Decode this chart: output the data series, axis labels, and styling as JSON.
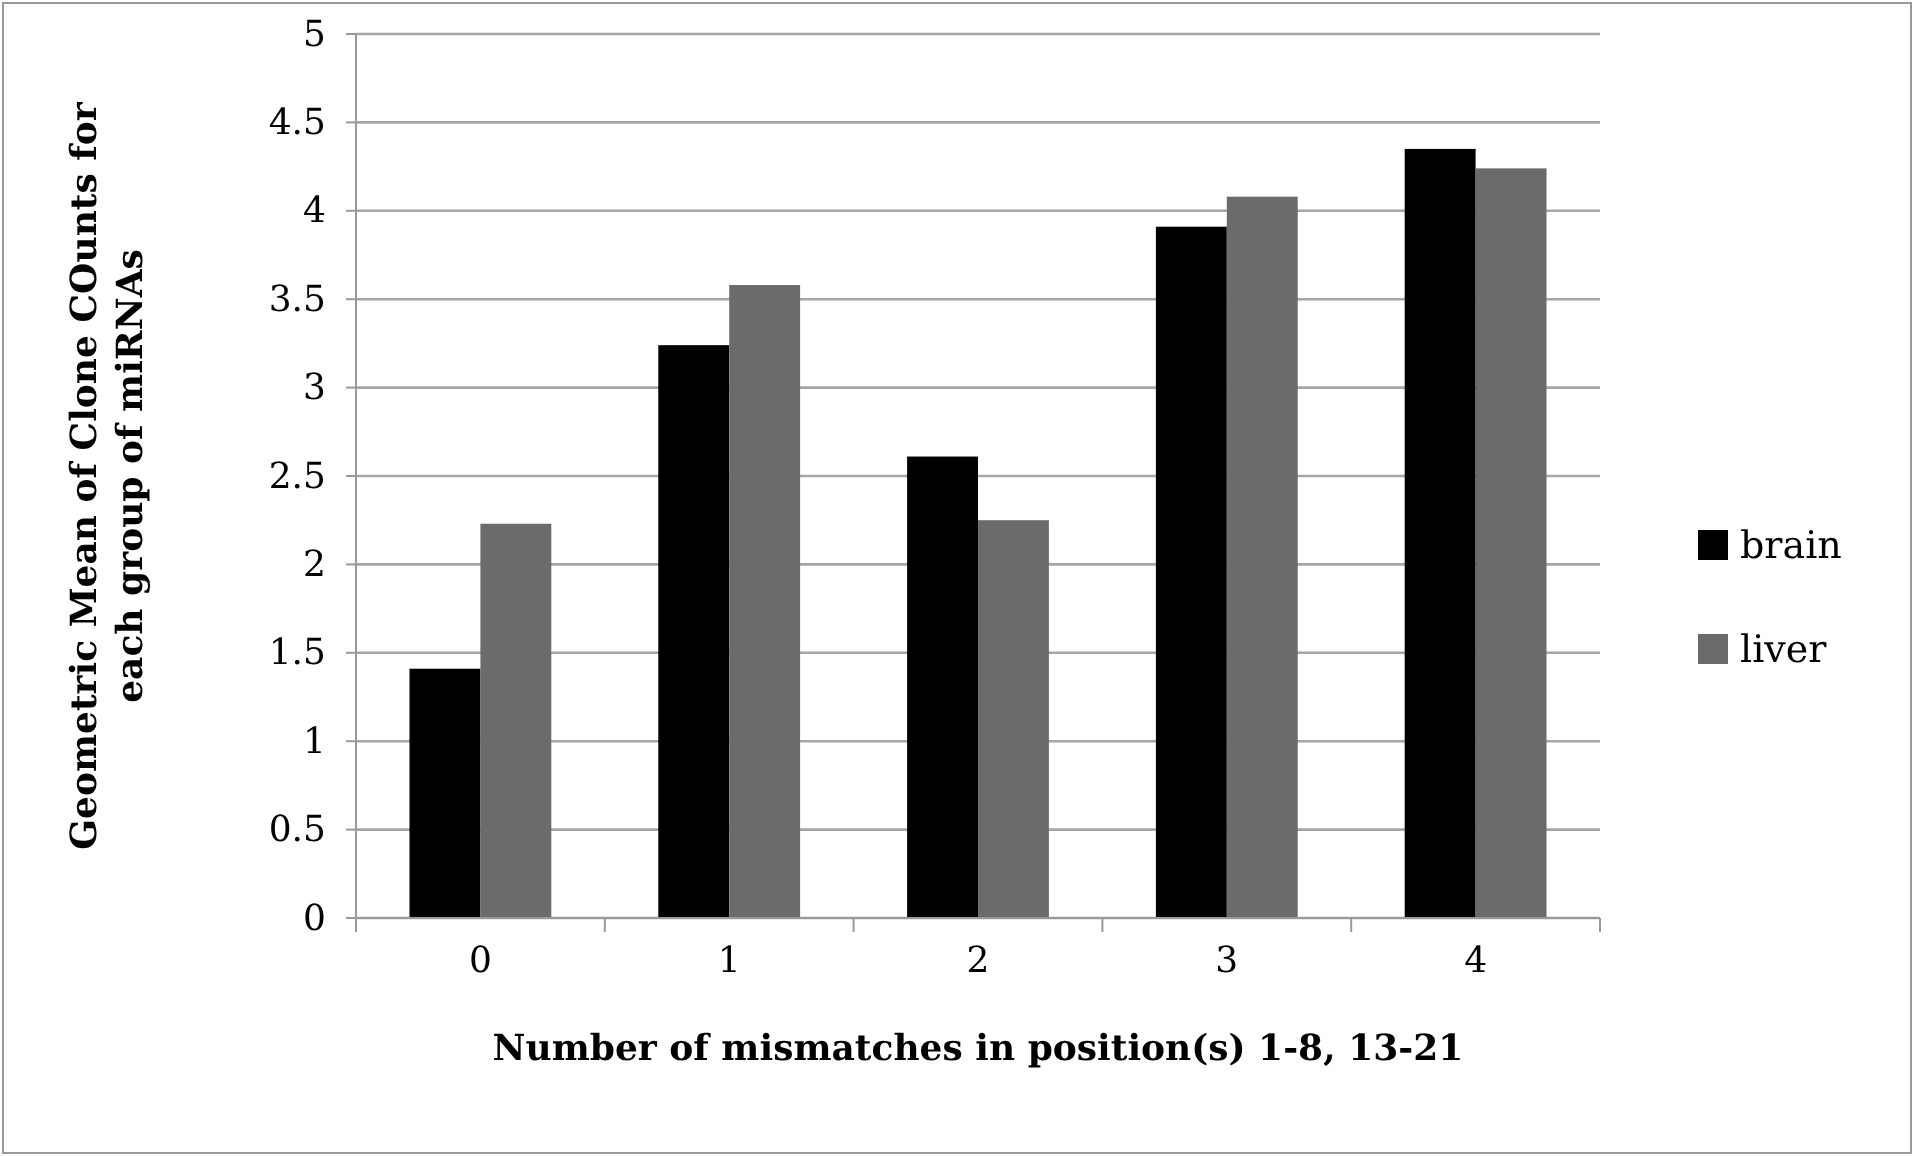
{
  "chart_data": {
    "type": "bar",
    "xlabel": "Number of mismatches in position(s) 1-8, 13-21",
    "ylabel": "Geometric Mean of Clone COunts for each group of miRNAs",
    "categories": [
      "0",
      "1",
      "2",
      "3",
      "4"
    ],
    "series": [
      {
        "name": "brain",
        "color": "#000000",
        "values": [
          1.41,
          3.24,
          2.61,
          3.91,
          4.35
        ]
      },
      {
        "name": "liver",
        "color": "#6b6b6b",
        "values": [
          2.23,
          3.58,
          2.25,
          4.08,
          4.24
        ]
      }
    ],
    "ylim": [
      0,
      5
    ],
    "yticks": [
      0,
      0.5,
      1,
      1.5,
      2,
      2.5,
      3,
      3.5,
      4,
      4.5,
      5
    ],
    "grid": "y",
    "legend": "right"
  }
}
